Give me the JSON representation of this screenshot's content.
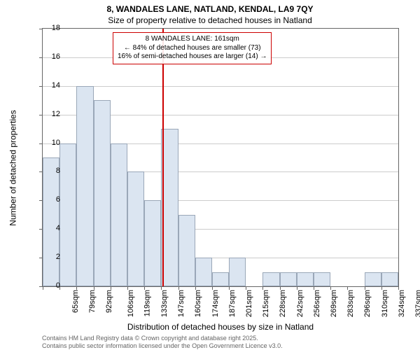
{
  "title_top": "8, WANDALES LANE, NATLAND, KENDAL, LA9 7QY",
  "title_sub": "Size of property relative to detached houses in Natland",
  "ylabel": "Number of detached properties",
  "xlabel": "Distribution of detached houses by size in Natland",
  "footer_line1": "Contains HM Land Registry data © Crown copyright and database right 2025.",
  "footer_line2": "Contains public sector information licensed under the Open Government Licence v3.0.",
  "chart": {
    "type": "histogram",
    "ylim": [
      0,
      18
    ],
    "ytick_step": 2,
    "yticks": [
      0,
      2,
      4,
      6,
      8,
      10,
      12,
      14,
      16,
      18
    ],
    "categories": [
      "65sqm",
      "79sqm",
      "92sqm",
      "106sqm",
      "119sqm",
      "133sqm",
      "147sqm",
      "160sqm",
      "174sqm",
      "187sqm",
      "201sqm",
      "215sqm",
      "228sqm",
      "242sqm",
      "256sqm",
      "269sqm",
      "283sqm",
      "296sqm",
      "310sqm",
      "324sqm",
      "337sqm"
    ],
    "values": [
      9,
      10,
      14,
      13,
      10,
      8,
      6,
      11,
      5,
      2,
      1,
      2,
      0,
      1,
      1,
      1,
      1,
      0,
      0,
      1,
      1
    ],
    "bar_fill": "#dbe5f1",
    "bar_stroke": "#9aa7b8",
    "grid_color": "#cccccc",
    "background_color": "#ffffff",
    "axis_color": "#666666",
    "label_fontsize": 11,
    "title_fontsize": 12,
    "reference_line": {
      "position_index": 7,
      "color": "#cc0000"
    },
    "annotation": {
      "border_color": "#cc0000",
      "line1": "8 WANDALES LANE: 161sqm",
      "line2": "← 84% of detached houses are smaller (73)",
      "line3": "16% of semi-detached houses are larger (14) →"
    }
  }
}
